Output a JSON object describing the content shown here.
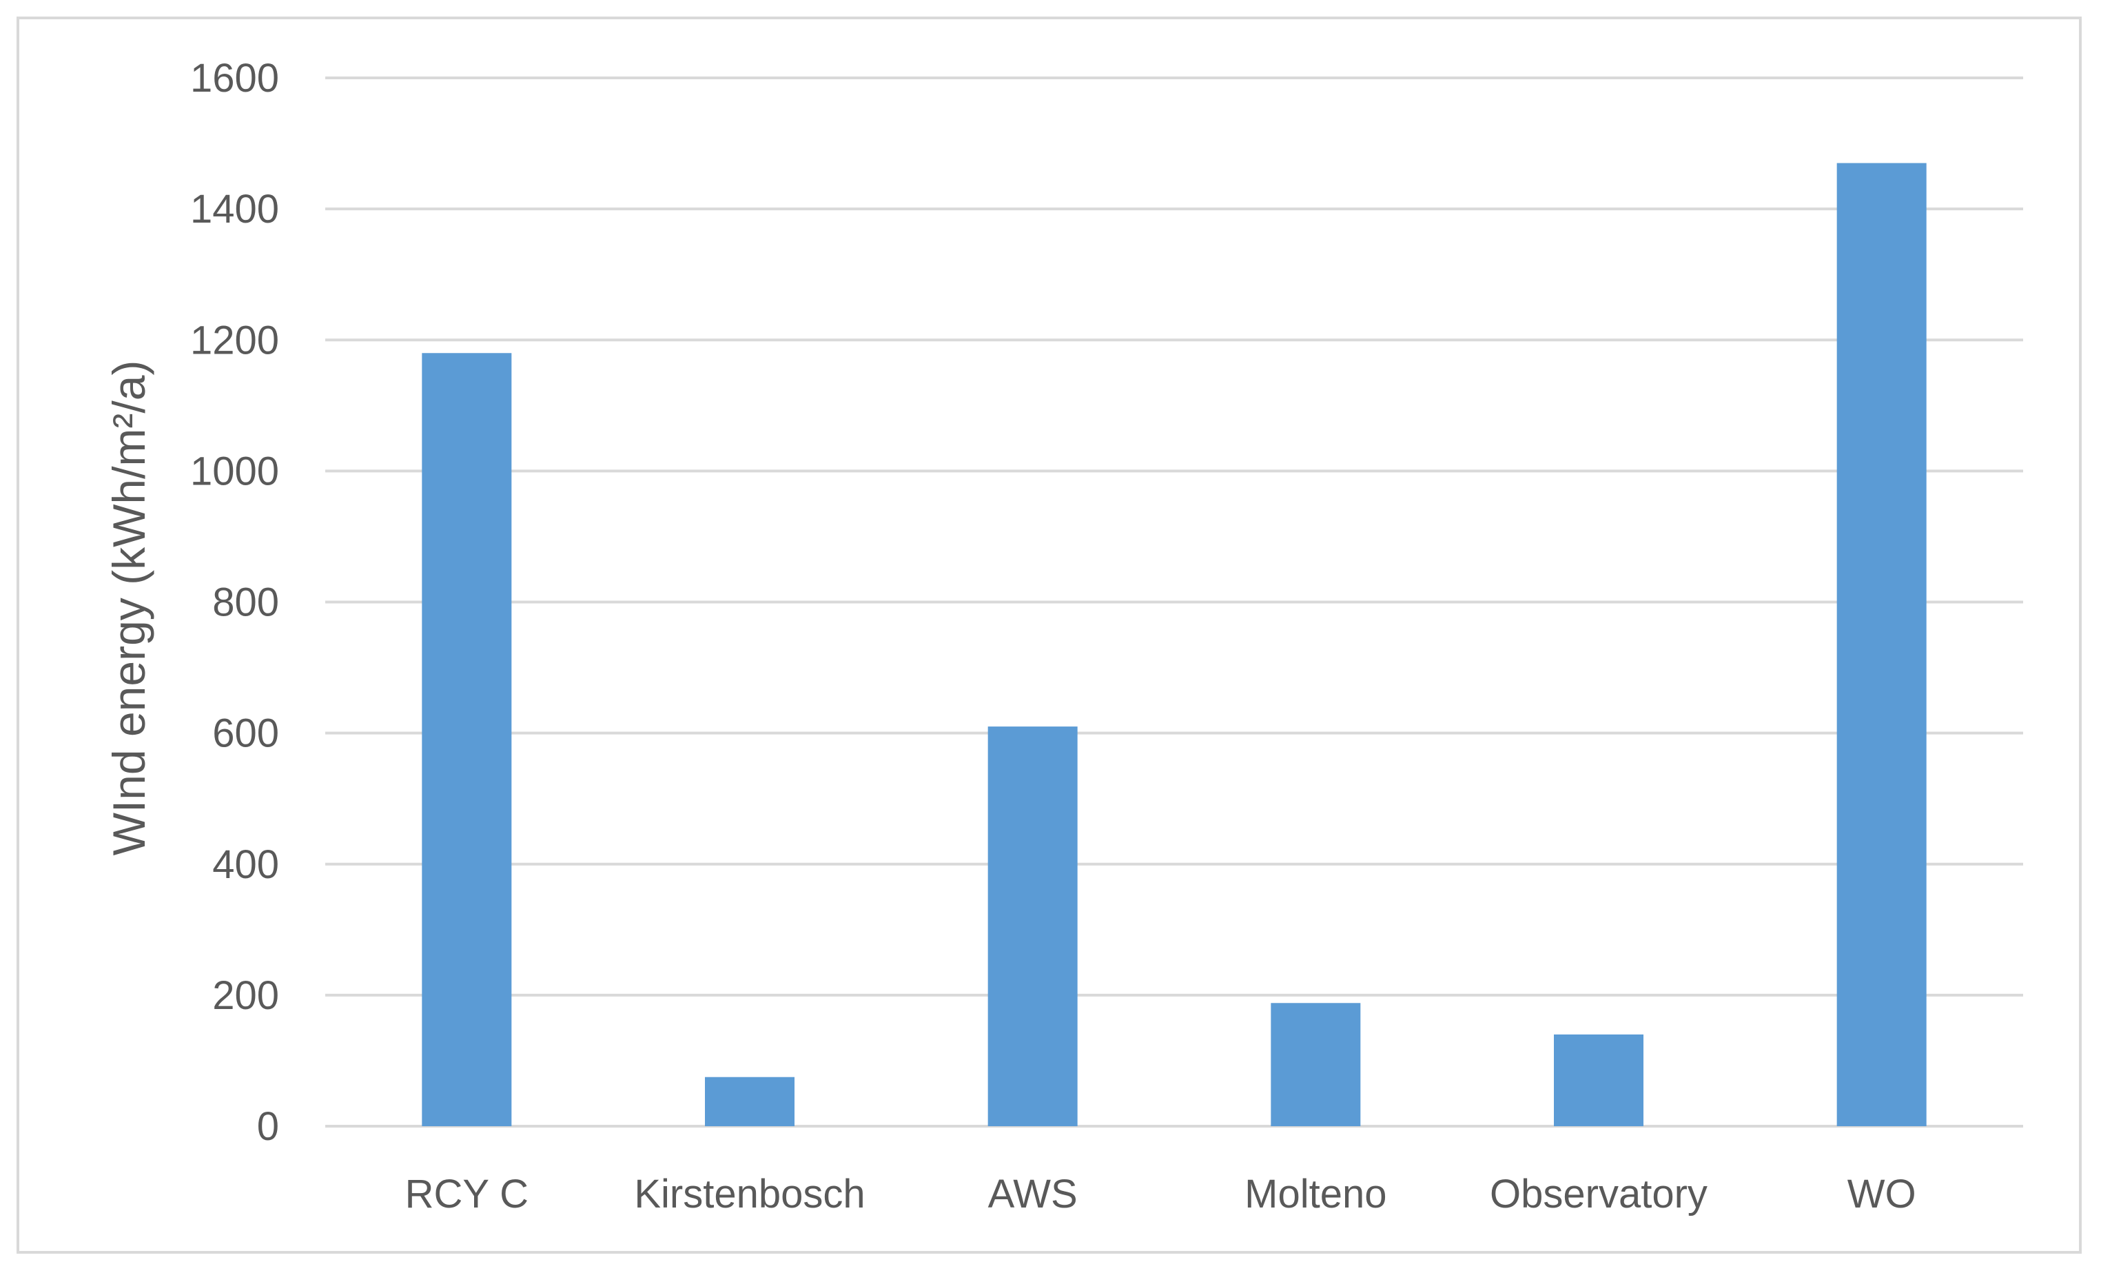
{
  "chart_data": {
    "type": "bar",
    "title": "",
    "xlabel": "",
    "ylabel": "WInd energy (kWh/m²/a)",
    "categories": [
      "RCY C",
      "Kirstenbosch",
      "AWS",
      "Molteno",
      "Observatory",
      "WO"
    ],
    "series": [
      {
        "values": [
          1180,
          75,
          610,
          188,
          140,
          1470
        ],
        "color": "#5b9bd5"
      }
    ],
    "ylim": [
      0,
      1600
    ],
    "yticks": [
      0,
      200,
      400,
      600,
      800,
      1000,
      1200,
      1400,
      1600
    ],
    "grid": true,
    "legend": "none"
  }
}
